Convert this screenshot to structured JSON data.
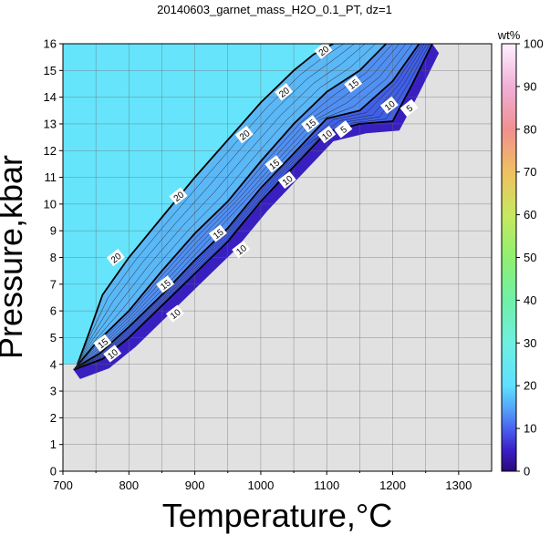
{
  "chart_data": {
    "type": "heatmap",
    "title": "20140603_garnet_mass_H2O_0.1_PT, dz=1",
    "xlabel": "Temperature,°C",
    "ylabel": "Pressure,kbar",
    "xlim": [
      700,
      1350
    ],
    "ylim": [
      0,
      16
    ],
    "x_ticks": [
      700,
      800,
      900,
      1000,
      1100,
      1200,
      1300
    ],
    "y_ticks": [
      0,
      1,
      2,
      3,
      4,
      5,
      6,
      7,
      8,
      9,
      10,
      11,
      12,
      13,
      14,
      15,
      16
    ],
    "grid": true,
    "colorbar": {
      "label": "wt%",
      "range": [
        0,
        100
      ],
      "ticks": [
        0,
        10,
        20,
        30,
        40,
        50,
        60,
        70,
        80,
        90,
        100
      ]
    },
    "contour_step": 1,
    "labeled_contours": [
      5,
      10,
      15,
      20
    ],
    "contours": [
      {
        "level": 20,
        "points": [
          [
            722,
            4.0
          ],
          [
            740,
            5.2
          ],
          [
            760,
            6.6
          ],
          [
            800,
            8.0
          ],
          [
            850,
            9.5
          ],
          [
            900,
            11.0
          ],
          [
            950,
            12.4
          ],
          [
            1000,
            13.8
          ],
          [
            1050,
            15.0
          ],
          [
            1080,
            15.6
          ],
          [
            1110,
            16.0
          ]
        ],
        "labels": [
          [
            780,
            8.0
          ],
          [
            875,
            10.3
          ],
          [
            975,
            12.6
          ],
          [
            1035,
            14.2
          ],
          [
            1095,
            15.75
          ]
        ]
      },
      {
        "level": 15,
        "points": [
          [
            720,
            3.9
          ],
          [
            750,
            4.8
          ],
          [
            800,
            6.0
          ],
          [
            850,
            7.5
          ],
          [
            900,
            8.9
          ],
          [
            950,
            10.1
          ],
          [
            1000,
            11.6
          ],
          [
            1050,
            13.0
          ],
          [
            1100,
            14.2
          ],
          [
            1150,
            15.0
          ],
          [
            1190,
            16.0
          ]
        ],
        "labels": [
          [
            760,
            4.8
          ],
          [
            855,
            7.0
          ],
          [
            935,
            8.9
          ],
          [
            1020,
            11.5
          ],
          [
            1075,
            13.0
          ],
          [
            1140,
            14.5
          ]
        ]
      },
      {
        "level": 10,
        "points": [
          [
            718,
            3.85
          ],
          [
            755,
            4.4
          ],
          [
            800,
            5.4
          ],
          [
            850,
            6.6
          ],
          [
            900,
            7.9
          ],
          [
            950,
            9.1
          ],
          [
            1000,
            10.6
          ],
          [
            1050,
            11.9
          ],
          [
            1100,
            13.2
          ],
          [
            1150,
            13.5
          ],
          [
            1200,
            14.6
          ],
          [
            1240,
            16.0
          ]
        ],
        "labels": [
          [
            775,
            4.4
          ],
          [
            870,
            5.9
          ],
          [
            970,
            8.3
          ],
          [
            1040,
            10.9
          ],
          [
            1100,
            12.6
          ],
          [
            1195,
            13.7
          ]
        ]
      },
      {
        "level": 5,
        "points": [
          [
            716,
            3.8
          ],
          [
            760,
            4.2
          ],
          [
            800,
            5.0
          ],
          [
            850,
            6.2
          ],
          [
            900,
            7.4
          ],
          [
            950,
            8.6
          ],
          [
            1000,
            10.1
          ],
          [
            1050,
            11.4
          ],
          [
            1100,
            12.7
          ],
          [
            1150,
            13.0
          ],
          [
            1200,
            13.1
          ],
          [
            1230,
            14.5
          ],
          [
            1260,
            16.0
          ]
        ],
        "labels": [
          [
            1125,
            12.8
          ],
          [
            1225,
            13.6
          ]
        ]
      }
    ]
  }
}
